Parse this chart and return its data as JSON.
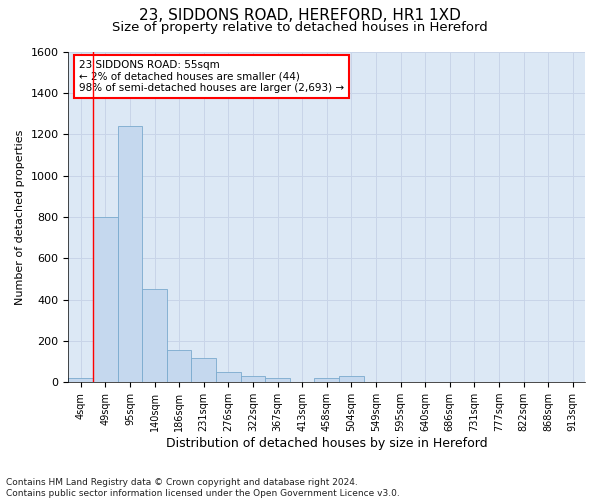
{
  "title1": "23, SIDDONS ROAD, HEREFORD, HR1 1XD",
  "title2": "Size of property relative to detached houses in Hereford",
  "xlabel": "Distribution of detached houses by size in Hereford",
  "ylabel": "Number of detached properties",
  "footnote": "Contains HM Land Registry data © Crown copyright and database right 2024.\nContains public sector information licensed under the Open Government Licence v3.0.",
  "bar_labels": [
    "4sqm",
    "49sqm",
    "95sqm",
    "140sqm",
    "186sqm",
    "231sqm",
    "276sqm",
    "322sqm",
    "367sqm",
    "413sqm",
    "458sqm",
    "504sqm",
    "549sqm",
    "595sqm",
    "640sqm",
    "686sqm",
    "731sqm",
    "777sqm",
    "822sqm",
    "868sqm",
    "913sqm"
  ],
  "bar_values": [
    20,
    800,
    1240,
    450,
    155,
    115,
    50,
    30,
    20,
    0,
    20,
    30,
    0,
    0,
    0,
    0,
    0,
    0,
    0,
    0,
    0
  ],
  "bar_color": "#c5d8ee",
  "bar_edge_color": "#7aaace",
  "grid_color": "#c8d4e8",
  "background_color": "#dce8f5",
  "ylim": [
    0,
    1600
  ],
  "yticks": [
    0,
    200,
    400,
    600,
    800,
    1000,
    1200,
    1400,
    1600
  ],
  "property_line_x": 0.5,
  "annotation_text": "23 SIDDONS ROAD: 55sqm\n← 2% of detached houses are smaller (44)\n98% of semi-detached houses are larger (2,693) →",
  "title1_fontsize": 11,
  "title2_fontsize": 9.5,
  "xlabel_fontsize": 9,
  "ylabel_fontsize": 8,
  "annotation_fontsize": 7.5,
  "footnote_fontsize": 6.5
}
